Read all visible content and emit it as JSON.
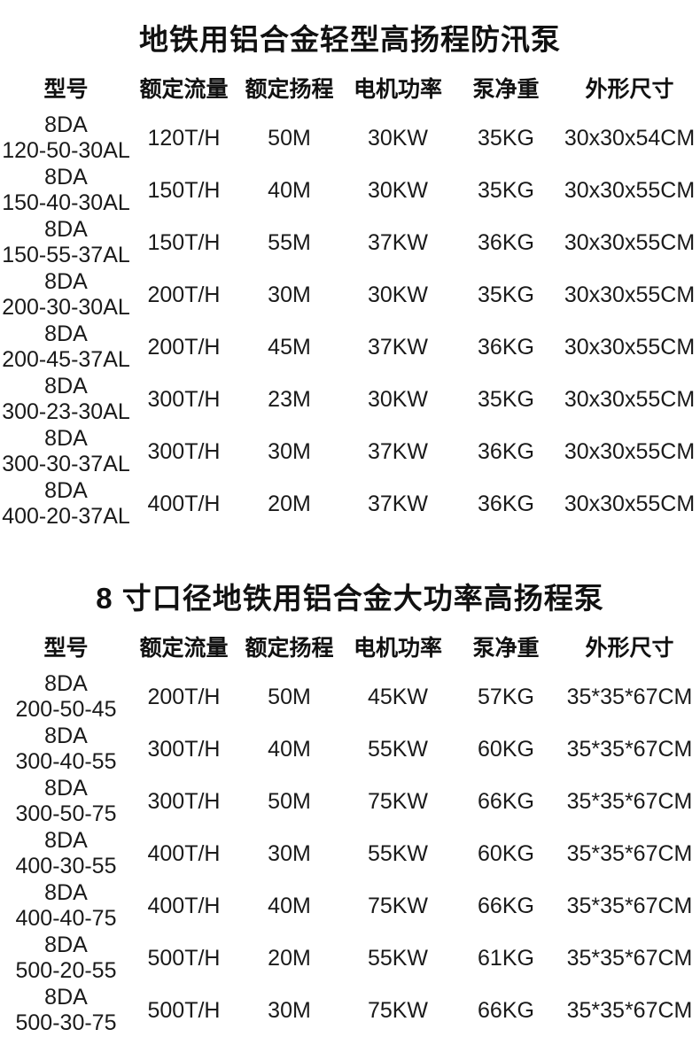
{
  "page": {
    "background": "#ffffff",
    "text_color": "#1a1a1a"
  },
  "column_keys": [
    "model",
    "flow",
    "head",
    "power",
    "weight",
    "size"
  ],
  "sections": [
    {
      "title": "地铁用铝合金轻型高扬程防汛泵",
      "columns": [
        "型号",
        "额定流量",
        "额定扬程",
        "电机功率",
        "泵净重",
        "外形尺寸"
      ],
      "rows": [
        {
          "model": "8DA\n120-50-30AL",
          "flow": "120T/H",
          "head": "50M",
          "power": "30KW",
          "weight": "35KG",
          "size": "30x30x54CM"
        },
        {
          "model": "8DA\n150-40-30AL",
          "flow": "150T/H",
          "head": "40M",
          "power": "30KW",
          "weight": "35KG",
          "size": "30x30x55CM"
        },
        {
          "model": "8DA\n150-55-37AL",
          "flow": "150T/H",
          "head": "55M",
          "power": "37KW",
          "weight": "36KG",
          "size": "30x30x55CM"
        },
        {
          "model": "8DA\n200-30-30AL",
          "flow": "200T/H",
          "head": "30M",
          "power": "30KW",
          "weight": "35KG",
          "size": "30x30x55CM"
        },
        {
          "model": "8DA\n200-45-37AL",
          "flow": "200T/H",
          "head": "45M",
          "power": "37KW",
          "weight": "36KG",
          "size": "30x30x55CM"
        },
        {
          "model": "8DA\n300-23-30AL",
          "flow": "300T/H",
          "head": "23M",
          "power": "30KW",
          "weight": "35KG",
          "size": "30x30x55CM"
        },
        {
          "model": "8DA\n300-30-37AL",
          "flow": "300T/H",
          "head": "30M",
          "power": "37KW",
          "weight": "36KG",
          "size": "30x30x55CM"
        },
        {
          "model": "8DA\n400-20-37AL",
          "flow": "400T/H",
          "head": "20M",
          "power": "37KW",
          "weight": "36KG",
          "size": "30x30x55CM"
        }
      ]
    },
    {
      "title": "8 寸口径地铁用铝合金大功率高扬程泵",
      "columns": [
        "型号",
        "额定流量",
        "额定扬程",
        "电机功率",
        "泵净重",
        "外形尺寸"
      ],
      "rows": [
        {
          "model": "8DA\n200-50-45",
          "flow": "200T/H",
          "head": "50M",
          "power": "45KW",
          "weight": "57KG",
          "size": "35*35*67CM"
        },
        {
          "model": "8DA\n300-40-55",
          "flow": "300T/H",
          "head": "40M",
          "power": "55KW",
          "weight": "60KG",
          "size": "35*35*67CM"
        },
        {
          "model": "8DA\n300-50-75",
          "flow": "300T/H",
          "head": "50M",
          "power": "75KW",
          "weight": "66KG",
          "size": "35*35*67CM"
        },
        {
          "model": "8DA\n400-30-55",
          "flow": "400T/H",
          "head": "30M",
          "power": "55KW",
          "weight": "60KG",
          "size": "35*35*67CM"
        },
        {
          "model": "8DA\n400-40-75",
          "flow": "400T/H",
          "head": "40M",
          "power": "75KW",
          "weight": "66KG",
          "size": "35*35*67CM"
        },
        {
          "model": "8DA\n500-20-55",
          "flow": "500T/H",
          "head": "20M",
          "power": "55KW",
          "weight": "61KG",
          "size": "35*35*67CM"
        },
        {
          "model": "8DA\n500-30-75",
          "flow": "500T/H",
          "head": "30M",
          "power": "75KW",
          "weight": "66KG",
          "size": "35*35*67CM"
        }
      ]
    }
  ]
}
